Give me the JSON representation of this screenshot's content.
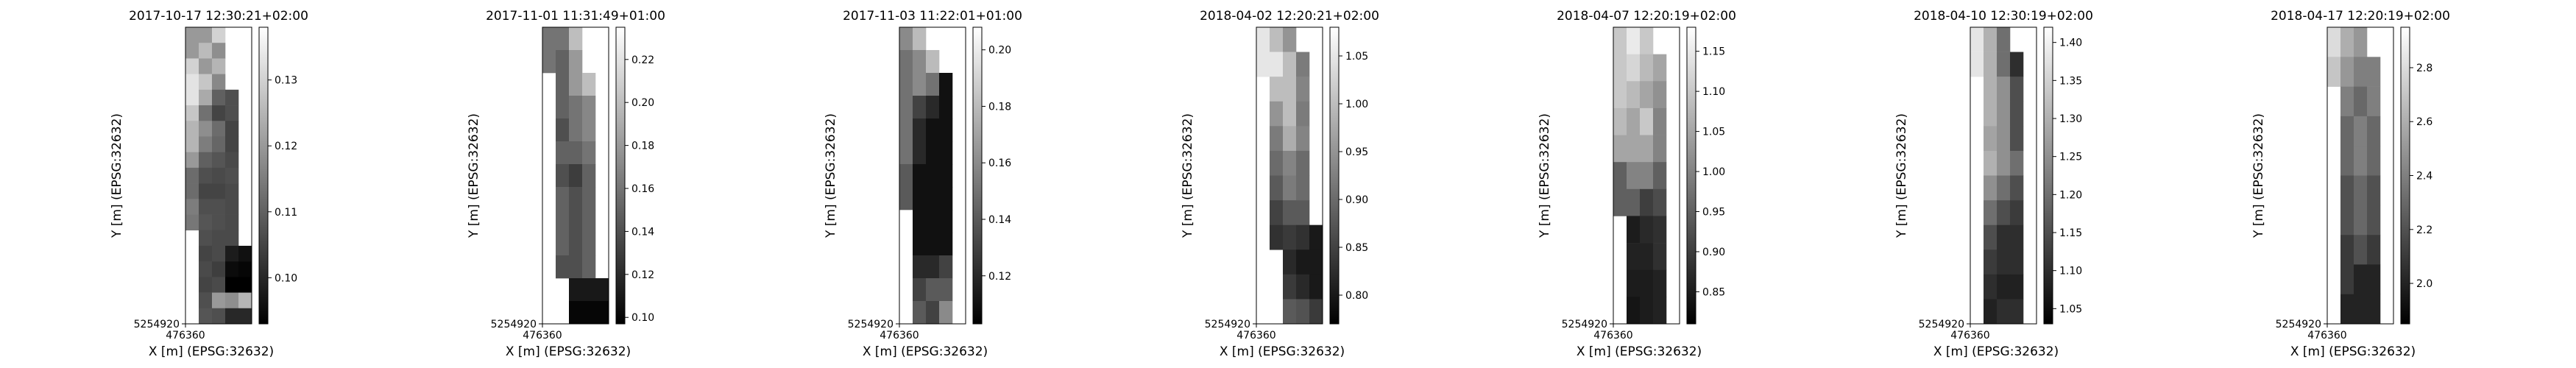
{
  "chart_data": [
    {
      "type": "heatmap",
      "title": "2017-10-17 12:30:21+02:00",
      "xlabel": "X [m] (EPSG:32632)",
      "ylabel": "Y [m] (EPSG:32632)",
      "x_tick": "476360",
      "y_tick": "5254920",
      "colorbar": {
        "ticks": [
          0.1,
          0.11,
          0.12,
          0.13
        ],
        "tick_labels": [
          "0.10",
          "0.11",
          "0.12",
          "0.13"
        ],
        "range": [
          0.093,
          0.138
        ],
        "colormap": "gray"
      },
      "grid": [
        [
          0.12,
          0.12,
          0.13,
          null,
          null
        ],
        [
          0.12,
          0.126,
          0.118,
          null,
          null
        ],
        [
          0.13,
          0.12,
          0.125,
          null,
          null
        ],
        [
          0.133,
          0.128,
          0.117,
          null,
          null
        ],
        [
          0.133,
          0.123,
          0.11,
          0.107,
          null
        ],
        [
          0.128,
          0.113,
          0.105,
          0.107,
          null
        ],
        [
          0.125,
          0.118,
          0.112,
          0.105,
          null
        ],
        [
          0.125,
          0.115,
          0.111,
          0.105,
          null
        ],
        [
          0.12,
          0.11,
          0.108,
          0.106,
          null
        ],
        [
          0.112,
          0.107,
          0.106,
          0.107,
          null
        ],
        [
          0.112,
          0.105,
          0.105,
          0.106,
          null
        ],
        [
          0.115,
          0.107,
          0.107,
          0.106,
          null
        ],
        [
          0.114,
          0.108,
          0.107,
          0.106,
          null
        ],
        [
          null,
          0.107,
          0.106,
          0.106,
          null
        ],
        [
          null,
          0.105,
          0.106,
          0.098,
          0.096
        ],
        [
          null,
          0.106,
          0.104,
          0.095,
          0.094
        ],
        [
          null,
          0.105,
          0.106,
          0.093,
          0.093
        ],
        [
          null,
          0.107,
          0.12,
          0.118,
          0.125
        ],
        [
          null,
          0.108,
          0.107,
          0.1,
          0.1
        ]
      ]
    },
    {
      "type": "heatmap",
      "title": "2017-11-01 11:31:49+01:00",
      "xlabel": "X [m] (EPSG:32632)",
      "ylabel": "Y [m] (EPSG:32632)",
      "x_tick": "476360",
      "y_tick": "5254920",
      "colorbar": {
        "ticks": [
          0.1,
          0.12,
          0.14,
          0.16,
          0.18,
          0.2,
          0.22
        ],
        "tick_labels": [
          "0.10",
          "0.12",
          "0.14",
          "0.16",
          "0.18",
          "0.20",
          "0.22"
        ],
        "range": [
          0.097,
          0.235
        ],
        "colormap": "gray"
      },
      "grid": [
        [
          0.16,
          0.16,
          0.2,
          null,
          null
        ],
        [
          0.16,
          0.15,
          0.18,
          null,
          null
        ],
        [
          null,
          0.15,
          0.18,
          0.2,
          null
        ],
        [
          null,
          0.15,
          0.16,
          0.17,
          null
        ],
        [
          null,
          0.14,
          0.16,
          0.17,
          null
        ],
        [
          null,
          0.15,
          0.15,
          0.16,
          null
        ],
        [
          null,
          0.14,
          0.13,
          0.15,
          null
        ],
        [
          null,
          0.15,
          0.14,
          0.15,
          null
        ],
        [
          null,
          0.15,
          0.14,
          0.15,
          null
        ],
        [
          null,
          0.15,
          0.14,
          0.15,
          null
        ],
        [
          null,
          0.14,
          0.14,
          0.15,
          null
        ],
        [
          null,
          null,
          0.11,
          0.11,
          0.11
        ],
        [
          null,
          null,
          0.1,
          0.1,
          0.1
        ]
      ]
    },
    {
      "type": "heatmap",
      "title": "2017-11-03 11:22:01+01:00",
      "xlabel": "X [m] (EPSG:32632)",
      "ylabel": "Y [m] (EPSG:32632)",
      "x_tick": "476360",
      "y_tick": "5254920",
      "colorbar": {
        "ticks": [
          0.12,
          0.14,
          0.16,
          0.18,
          0.2
        ],
        "tick_labels": [
          "0.12",
          "0.14",
          "0.16",
          "0.18",
          "0.20"
        ],
        "range": [
          0.103,
          0.208
        ],
        "colormap": "gray"
      },
      "grid": [
        [
          0.16,
          0.18,
          null,
          null,
          null
        ],
        [
          0.15,
          0.16,
          0.18,
          null,
          null
        ],
        [
          0.15,
          0.16,
          0.15,
          0.11,
          null
        ],
        [
          0.15,
          0.13,
          0.12,
          0.11,
          null
        ],
        [
          0.15,
          0.12,
          0.11,
          0.11,
          null
        ],
        [
          0.15,
          0.12,
          0.11,
          0.11,
          null
        ],
        [
          0.14,
          0.11,
          0.11,
          0.11,
          null
        ],
        [
          0.14,
          0.11,
          0.11,
          0.11,
          null
        ],
        [
          null,
          0.11,
          0.11,
          0.11,
          null
        ],
        [
          null,
          0.11,
          0.11,
          0.11,
          null
        ],
        [
          null,
          0.12,
          0.12,
          0.13,
          null
        ],
        [
          null,
          0.13,
          0.14,
          0.14,
          null
        ],
        [
          null,
          0.14,
          0.13,
          0.16,
          null
        ]
      ]
    },
    {
      "type": "heatmap",
      "title": "2018-04-02 12:20:21+02:00",
      "xlabel": "X [m] (EPSG:32632)",
      "ylabel": "Y [m] (EPSG:32632)",
      "x_tick": "476360",
      "y_tick": "5254920",
      "colorbar": {
        "ticks": [
          0.8,
          0.85,
          0.9,
          0.95,
          1.0,
          1.05
        ],
        "tick_labels": [
          "0.80",
          "0.85",
          "0.90",
          "0.95",
          "1.00",
          "1.05"
        ],
        "range": [
          0.77,
          1.08
        ],
        "colormap": "gray"
      },
      "grid": [
        [
          1.05,
          1.0,
          0.95,
          null,
          null
        ],
        [
          1.05,
          1.05,
          1.0,
          0.92,
          null
        ],
        [
          null,
          1.0,
          1.0,
          0.93,
          null
        ],
        [
          null,
          0.95,
          1.0,
          0.92,
          null
        ],
        [
          null,
          0.92,
          0.98,
          0.93,
          null
        ],
        [
          null,
          0.9,
          0.93,
          0.9,
          null
        ],
        [
          null,
          0.88,
          0.92,
          0.9,
          null
        ],
        [
          null,
          0.85,
          0.88,
          0.88,
          null
        ],
        [
          null,
          0.83,
          0.84,
          0.83,
          0.8
        ],
        [
          null,
          null,
          0.82,
          0.8,
          0.8
        ],
        [
          null,
          null,
          0.84,
          0.82,
          0.8
        ],
        [
          null,
          null,
          0.88,
          0.87,
          0.84
        ]
      ]
    },
    {
      "type": "heatmap",
      "title": "2018-04-07 12:20:19+02:00",
      "xlabel": "X [m] (EPSG:32632)",
      "ylabel": "Y [m] (EPSG:32632)",
      "x_tick": "476360",
      "y_tick": "5254920",
      "colorbar": {
        "ticks": [
          0.85,
          0.9,
          0.95,
          1.0,
          1.05,
          1.1,
          1.15
        ],
        "tick_labels": [
          "0.85",
          "0.90",
          "0.95",
          "1.00",
          "1.05",
          "1.10",
          "1.15"
        ],
        "range": [
          0.81,
          1.18
        ],
        "colormap": "gray"
      },
      "grid": [
        [
          1.1,
          1.15,
          1.1,
          null,
          null
        ],
        [
          1.1,
          1.12,
          1.08,
          1.05,
          null
        ],
        [
          1.1,
          1.08,
          1.05,
          1.02,
          null
        ],
        [
          1.08,
          1.05,
          1.1,
          1.0,
          null
        ],
        [
          1.05,
          1.05,
          1.05,
          1.0,
          null
        ],
        [
          0.95,
          1.0,
          1.0,
          0.95,
          null
        ],
        [
          0.95,
          0.95,
          0.9,
          0.92,
          null
        ],
        [
          null,
          0.85,
          0.87,
          0.88,
          null
        ],
        [
          null,
          0.86,
          0.86,
          0.88,
          null
        ],
        [
          null,
          0.85,
          0.85,
          0.86,
          null
        ],
        [
          null,
          0.84,
          0.85,
          0.86,
          null
        ]
      ]
    },
    {
      "type": "heatmap",
      "title": "2018-04-10 12:30:19+02:00",
      "xlabel": "X [m] (EPSG:32632)",
      "ylabel": "Y [m] (EPSG:32632)",
      "x_tick": "476360",
      "y_tick": "5254920",
      "colorbar": {
        "ticks": [
          1.05,
          1.1,
          1.15,
          1.2,
          1.25,
          1.3,
          1.35,
          1.4
        ],
        "tick_labels": [
          "1.05",
          "1.10",
          "1.15",
          "1.20",
          "1.25",
          "1.30",
          "1.35",
          "1.40"
        ],
        "range": [
          1.03,
          1.42
        ],
        "colormap": "gray"
      },
      "grid": [
        [
          1.38,
          1.3,
          1.2,
          null,
          null
        ],
        [
          1.38,
          1.3,
          1.2,
          1.1,
          null
        ],
        [
          null,
          1.3,
          1.25,
          1.15,
          null
        ],
        [
          null,
          1.3,
          1.25,
          1.15,
          null
        ],
        [
          null,
          1.28,
          1.25,
          1.15,
          null
        ],
        [
          null,
          1.3,
          1.25,
          1.2,
          null
        ],
        [
          null,
          1.25,
          1.2,
          1.15,
          null
        ],
        [
          null,
          1.2,
          1.15,
          1.12,
          null
        ],
        [
          null,
          1.15,
          1.1,
          1.1,
          null
        ],
        [
          null,
          1.12,
          1.1,
          1.1,
          null
        ],
        [
          null,
          1.1,
          1.08,
          1.08,
          null
        ],
        [
          null,
          1.08,
          1.1,
          1.1,
          null
        ]
      ]
    },
    {
      "type": "heatmap",
      "title": "2018-04-17 12:20:19+02:00",
      "xlabel": "X [m] (EPSG:32632)",
      "ylabel": "Y [m] (EPSG:32632)",
      "x_tick": "476360",
      "y_tick": "5254920",
      "colorbar": {
        "ticks": [
          2.0,
          2.2,
          2.4,
          2.6,
          2.8
        ],
        "tick_labels": [
          "2.0",
          "2.2",
          "2.4",
          "2.6",
          "2.8"
        ],
        "range": [
          1.85,
          2.95
        ],
        "colormap": "gray"
      },
      "grid": [
        [
          2.8,
          2.6,
          2.5,
          null,
          null
        ],
        [
          2.7,
          2.5,
          2.4,
          2.4,
          null
        ],
        [
          null,
          2.4,
          2.3,
          2.4,
          null
        ],
        [
          null,
          2.3,
          2.4,
          2.3,
          null
        ],
        [
          null,
          2.3,
          2.4,
          2.3,
          null
        ],
        [
          null,
          2.2,
          2.3,
          2.2,
          null
        ],
        [
          null,
          2.2,
          2.3,
          2.2,
          null
        ],
        [
          null,
          2.1,
          2.2,
          2.1,
          null
        ],
        [
          null,
          2.1,
          2.0,
          2.0,
          null
        ],
        [
          null,
          2.0,
          2.0,
          2.0,
          null
        ]
      ]
    }
  ]
}
